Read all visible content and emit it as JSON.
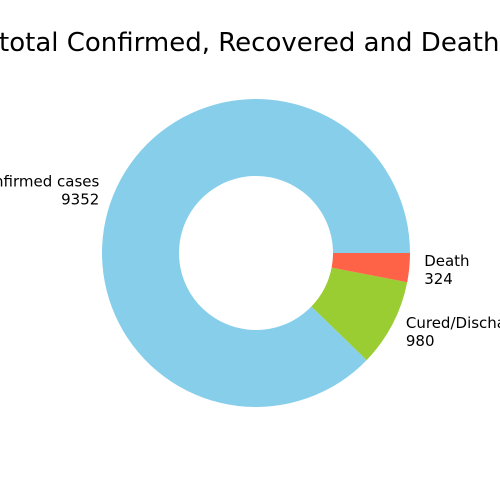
{
  "chart_data": {
    "type": "pie",
    "donut": true,
    "title": "total Confirmed, Recovered and Deaths",
    "slices": [
      {
        "label": "Confirmed cases",
        "value": 9352,
        "color": "#87CEEB"
      },
      {
        "label": "Cured/Discharged",
        "value": 980,
        "color": "#9ACD32"
      },
      {
        "label": "Death",
        "value": 324,
        "color": "#FF6347"
      }
    ]
  }
}
